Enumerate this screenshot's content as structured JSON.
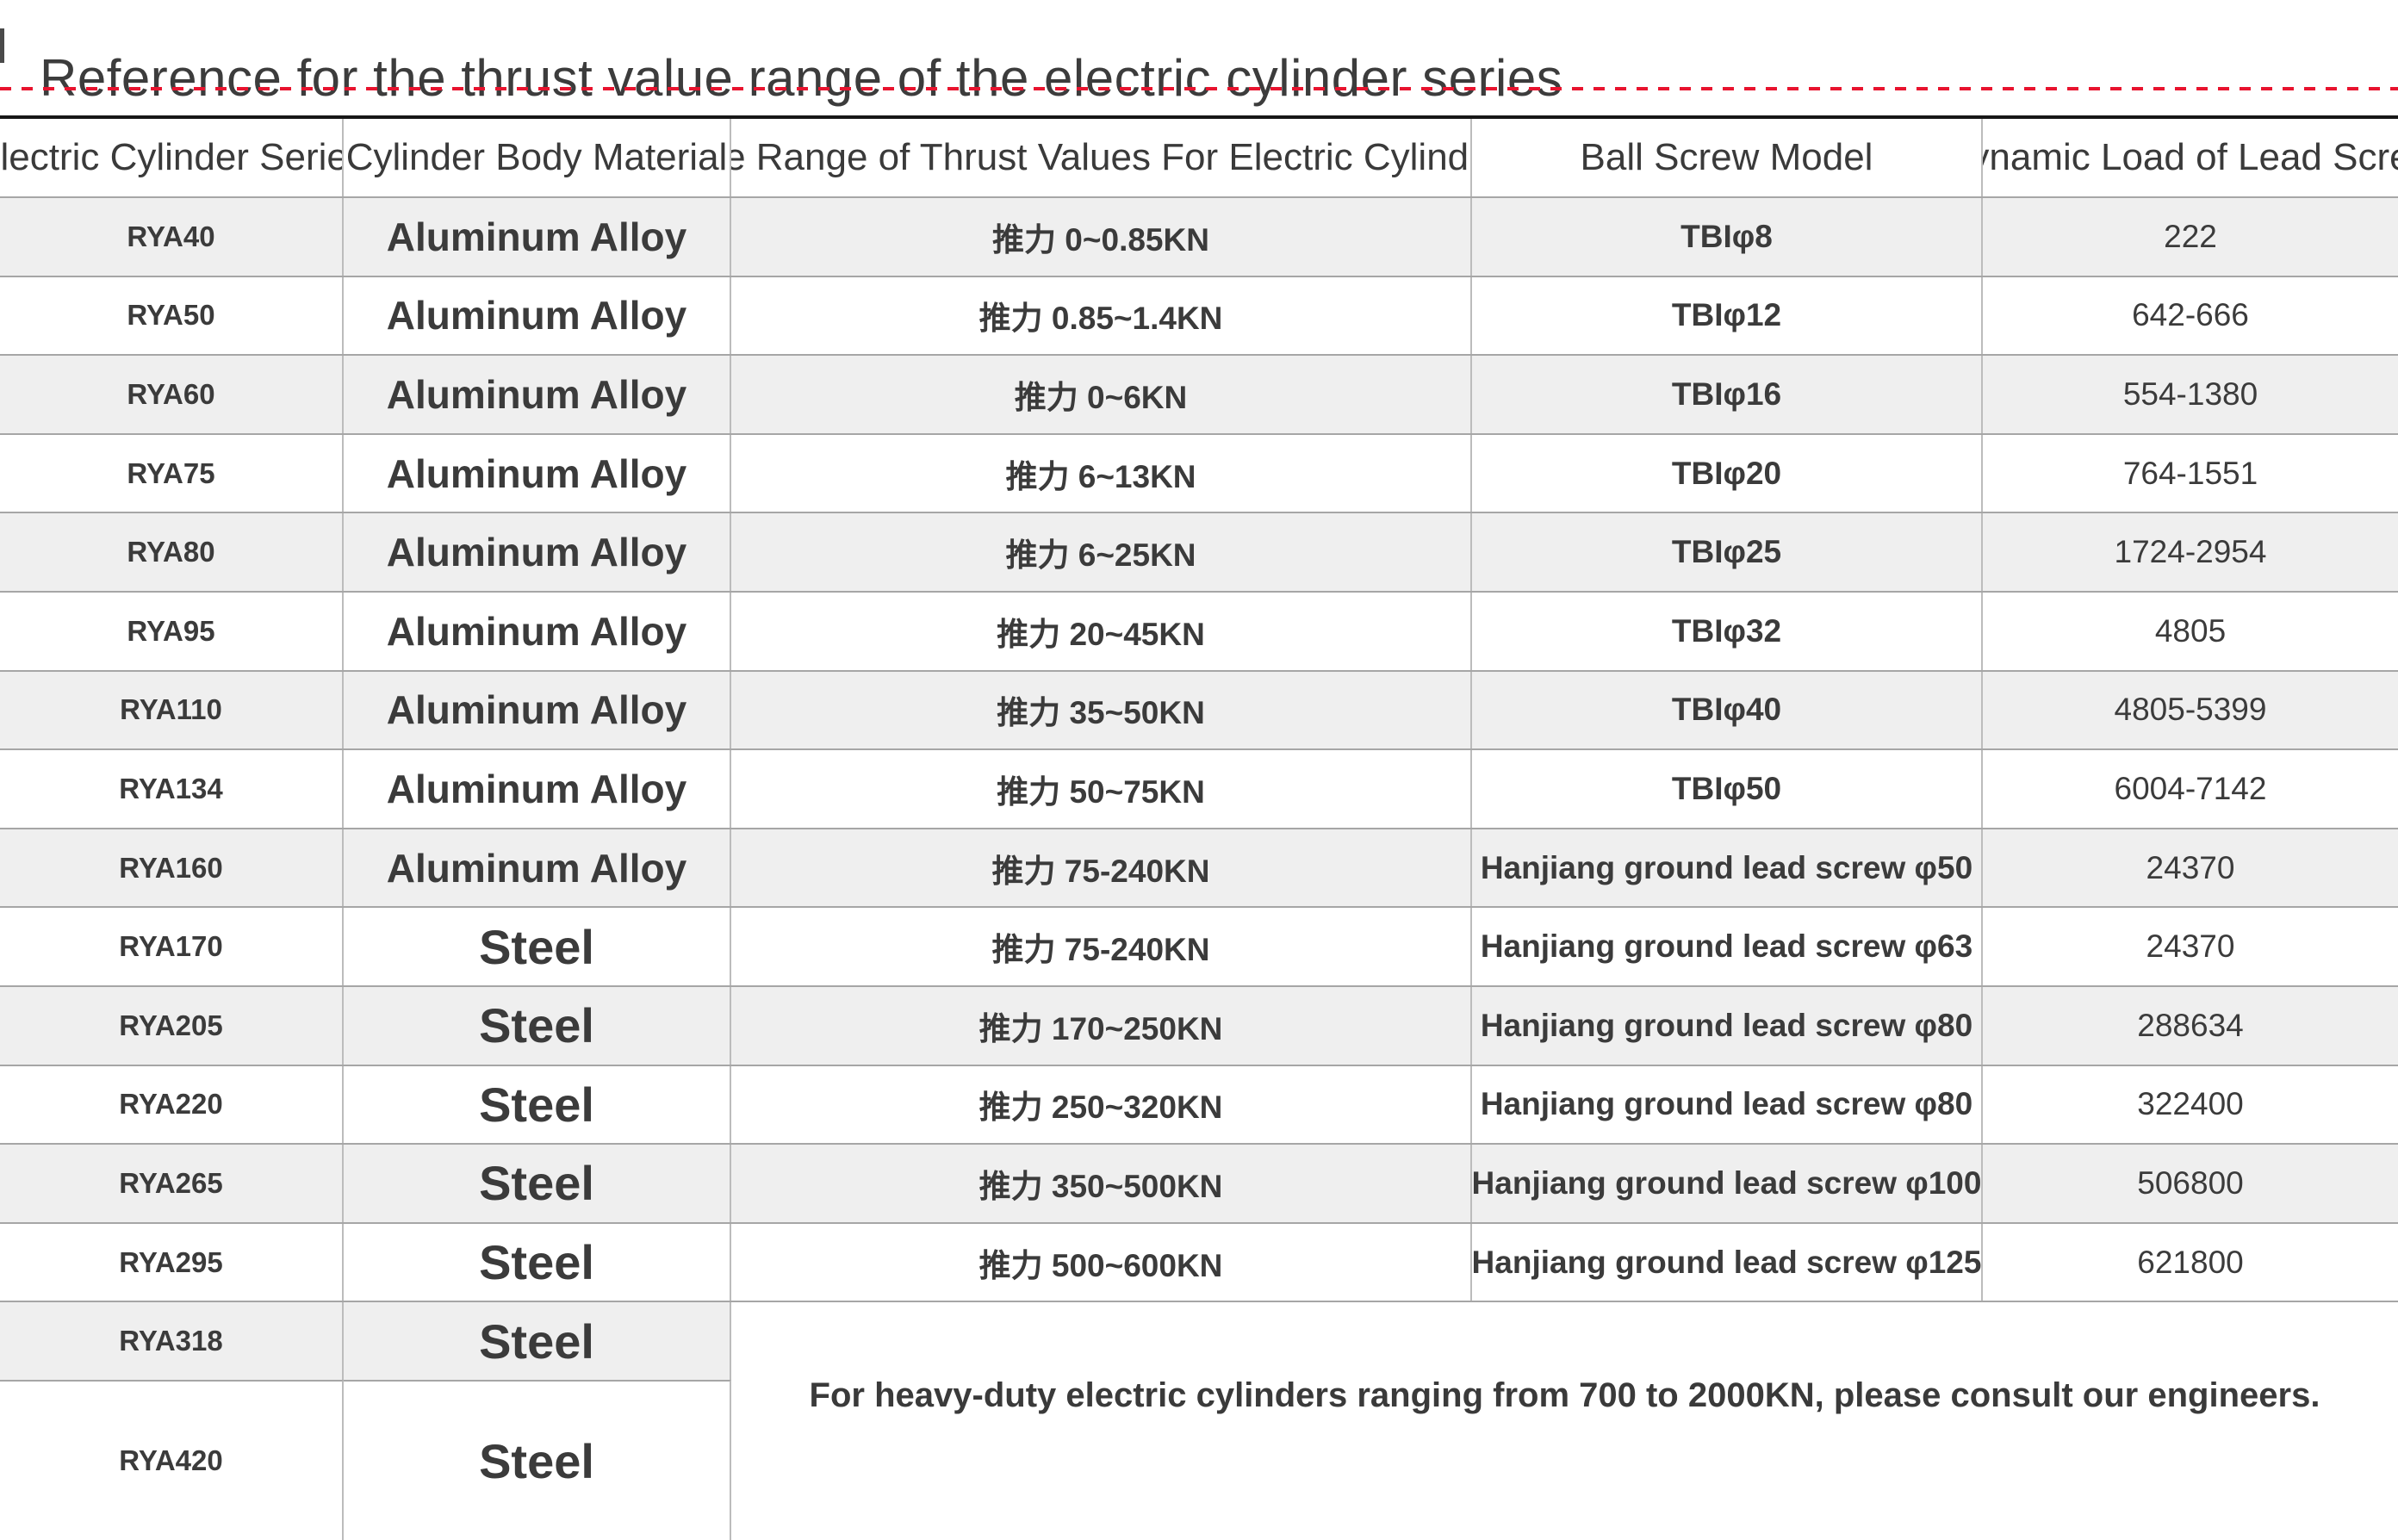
{
  "page": {
    "title": "Reference for the thrust value range of the electric cylinder series"
  },
  "colors": {
    "accent_red": "#e8132e",
    "row_shade": "#efefef",
    "table_top_border": "#171717",
    "text": "#3b3b3b"
  },
  "table": {
    "columns": [
      {
        "key": "series",
        "label": "Electric Cylinder Series"
      },
      {
        "key": "material",
        "label": "Cylinder Body Material"
      },
      {
        "key": "thrust",
        "label": "The Range of Thrust Values For Electric Cylinders"
      },
      {
        "key": "screw",
        "label": "Ball Screw Model"
      },
      {
        "key": "load",
        "label": "Dynamic Load of Lead Screw"
      }
    ],
    "rows": [
      {
        "series": "RYA40",
        "material": "Aluminum Alloy",
        "thrust": "推力 0~0.85KN",
        "screw": "TBIφ8",
        "load": "222",
        "shaded": true
      },
      {
        "series": "RYA50",
        "material": "Aluminum Alloy",
        "thrust": "推力 0.85~1.4KN",
        "screw": "TBIφ12",
        "load": "642-666",
        "shaded": false
      },
      {
        "series": "RYA60",
        "material": "Aluminum Alloy",
        "thrust": "推力 0~6KN",
        "screw": "TBIφ16",
        "load": "554-1380",
        "shaded": true
      },
      {
        "series": "RYA75",
        "material": "Aluminum Alloy",
        "thrust": "推力 6~13KN",
        "screw": "TBIφ20",
        "load": "764-1551",
        "shaded": false
      },
      {
        "series": "RYA80",
        "material": "Aluminum Alloy",
        "thrust": "推力 6~25KN",
        "screw": "TBIφ25",
        "load": "1724-2954",
        "shaded": true
      },
      {
        "series": "RYA95",
        "material": "Aluminum Alloy",
        "thrust": "推力 20~45KN",
        "screw": "TBIφ32",
        "load": "4805",
        "shaded": false
      },
      {
        "series": "RYA110",
        "material": "Aluminum Alloy",
        "thrust": "推力 35~50KN",
        "screw": "TBIφ40",
        "load": "4805-5399",
        "shaded": true
      },
      {
        "series": "RYA134",
        "material": "Aluminum Alloy",
        "thrust": "推力 50~75KN",
        "screw": "TBIφ50",
        "load": "6004-7142",
        "shaded": false
      },
      {
        "series": "RYA160",
        "material": "Aluminum Alloy",
        "thrust": "推力 75-240KN",
        "screw": "Hanjiang ground lead screw φ50",
        "load": "24370",
        "shaded": true
      },
      {
        "series": "RYA170",
        "material": "Steel",
        "thrust": "推力 75-240KN",
        "screw": "Hanjiang ground lead screw φ63",
        "load": "24370",
        "shaded": false
      },
      {
        "series": "RYA205",
        "material": "Steel",
        "thrust": "推力 170~250KN",
        "screw": "Hanjiang ground lead screw φ80",
        "load": "288634",
        "shaded": true
      },
      {
        "series": "RYA220",
        "material": "Steel",
        "thrust": "推力 250~320KN",
        "screw": "Hanjiang ground lead screw φ80",
        "load": "322400",
        "shaded": false
      },
      {
        "series": "RYA265",
        "material": "Steel",
        "thrust": "推力 350~500KN",
        "screw": "Hanjiang ground lead screw φ100",
        "load": "506800",
        "shaded": true
      },
      {
        "series": "RYA295",
        "material": "Steel",
        "thrust": "推力 500~600KN",
        "screw": "Hanjiang ground lead screw φ125",
        "load": "621800",
        "shaded": false
      }
    ],
    "footer_rows": [
      {
        "series": "RYA318",
        "material": "Steel",
        "shaded": true
      },
      {
        "series": "RYA420",
        "material": "Steel",
        "shaded": false
      }
    ],
    "footer_note": "For heavy-duty electric cylinders ranging from 700 to 2000KN, please consult our engineers."
  }
}
